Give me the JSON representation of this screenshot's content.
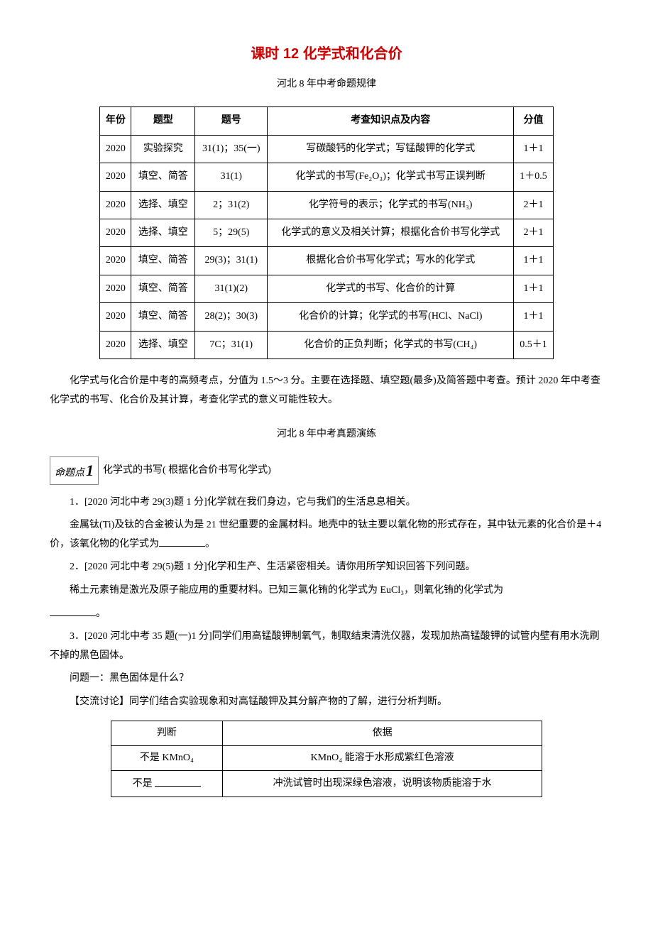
{
  "title": "课时 12 化学式和化合价",
  "subtitle1": "河北 8 年中考命题规律",
  "table1": {
    "headers": [
      "年份",
      "题型",
      "题号",
      "考查知识点及内容",
      "分值"
    ],
    "rows": [
      [
        "2020",
        "实验探究",
        "31(1)；35(一)",
        "写碳酸钙的化学式；写锰酸钾的化学式",
        "1＋1"
      ],
      [
        "2020",
        "填空、简答",
        "31(1)",
        "化学式的书写(Fe₂O₃)；化学式书写正误判断",
        "1＋0.5"
      ],
      [
        "2020",
        "选择、填空",
        "2；31(2)",
        "化学符号的表示；化学式的书写(NH₃)",
        "2＋1"
      ],
      [
        "2020",
        "选择、填空",
        "5；29(5)",
        "化学式的意义及相关计算；根据化合价书写化学式",
        "2＋1"
      ],
      [
        "2020",
        "填空、简答",
        "29(3)；31(1)",
        "根据化合价书写化学式；写水的化学式",
        "1＋1"
      ],
      [
        "2020",
        "填空、简答",
        "31(1)(2)",
        "化学式的书写、化合价的计算",
        "1＋1"
      ],
      [
        "2020",
        "填空、简答",
        "28(2)；30(3)",
        "化合价的计算；化学式的书写(HCl、NaCl)",
        "1＋1"
      ],
      [
        "2020",
        "选择、填空",
        "7C；31(1)",
        "化合价的正负判断；化学式的书写(CH₄)",
        "0.5＋1"
      ]
    ]
  },
  "summary": "化学式与化合价是中考的高频考点，分值为 1.5～3 分。主要在选择题、填空题(最多)及简答题中考查。预计 2020 年中考查化学式的书写、化合价及其计算，考查化学式的意义可能性较大。",
  "subtitle2": "河北 8 年中考真题演练",
  "topic_label": "命题点",
  "topic_num": "1",
  "topic_desc": "化学式的书写( 根据化合价书写化学式)",
  "q1_head": "1．[2020 河北中考 29(3)题 1 分]化学就在我们身边，它与我们的生活息息相关。",
  "q1_body_a": "金属钛(Ti)及钛的合金被认为是 21 世纪重要的金属材料。地壳中的钛主要以氧化物的形式存在，其中钛元素的化合价是＋4 价，该氧化物的化学式为",
  "q1_body_b": "。",
  "q2_head": "2．[2020 河北中考 29(5)题 1 分]化学和生产、生活紧密相关。请你用所学知识回答下列问题。",
  "q2_body_a": "稀土元素铕是激光及原子能应用的重要材料。已知三氯化铕的化学式为 EuCl₃，则氧化铕的化学式为",
  "q2_body_b": "。",
  "q3_head": "3．[2020 河北中考 35 题(一)1 分]同学们用高锰酸钾制氧气，制取结束清洗仪器，发现加热高锰酸钾的试管内壁有用水洗刷不掉的黑色固体。",
  "q3_p1": "问题一：黑色固体是什么？",
  "q3_p2": "【交流讨论】同学们结合实验现象和对高锰酸钾及其分解产物的了解，进行分析判断。",
  "table2": {
    "headers": [
      "判断",
      "依据"
    ],
    "rows": [
      [
        "不是 KMnO₄",
        "KMnO₄ 能溶于水形成紫红色溶液"
      ],
      [
        "不是 ",
        "冲洗试管时出现深绿色溶液，说明该物质能溶于水"
      ]
    ]
  }
}
